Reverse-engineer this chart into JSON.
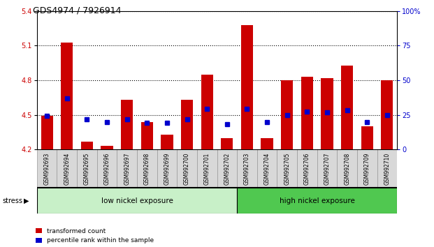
{
  "title": "GDS4974 / 7926914",
  "samples": [
    "GSM992693",
    "GSM992694",
    "GSM992695",
    "GSM992696",
    "GSM992697",
    "GSM992698",
    "GSM992699",
    "GSM992700",
    "GSM992701",
    "GSM992702",
    "GSM992703",
    "GSM992704",
    "GSM992705",
    "GSM992706",
    "GSM992707",
    "GSM992708",
    "GSM992709",
    "GSM992710"
  ],
  "red_values": [
    4.49,
    5.13,
    4.27,
    4.23,
    4.63,
    4.44,
    4.33,
    4.63,
    4.85,
    4.3,
    5.28,
    4.3,
    4.8,
    4.83,
    4.82,
    4.93,
    4.4,
    4.8
  ],
  "blue_values": [
    4.49,
    4.64,
    4.46,
    4.44,
    4.46,
    4.43,
    4.43,
    4.46,
    4.55,
    4.42,
    4.55,
    4.44,
    4.5,
    4.53,
    4.52,
    4.54,
    4.44,
    4.5
  ],
  "ymin": 4.2,
  "ymax": 5.4,
  "yticks": [
    4.2,
    4.5,
    4.8,
    5.1,
    5.4
  ],
  "right_yticks": [
    0,
    25,
    50,
    75,
    100
  ],
  "bar_color": "#cc0000",
  "blue_color": "#0000cc",
  "group1_label": "low nickel exposure",
  "group2_label": "high nickel exposure",
  "group1_count": 10,
  "stress_label": "stress",
  "legend_red": "transformed count",
  "legend_blue": "percentile rank within the sample",
  "title_fontsize": 9,
  "tick_fontsize": 7,
  "label_fontsize": 8,
  "bar_width": 0.6,
  "bg_color": "#f5f5f5",
  "group1_color": "#c8f0c8",
  "group2_color": "#50c850"
}
